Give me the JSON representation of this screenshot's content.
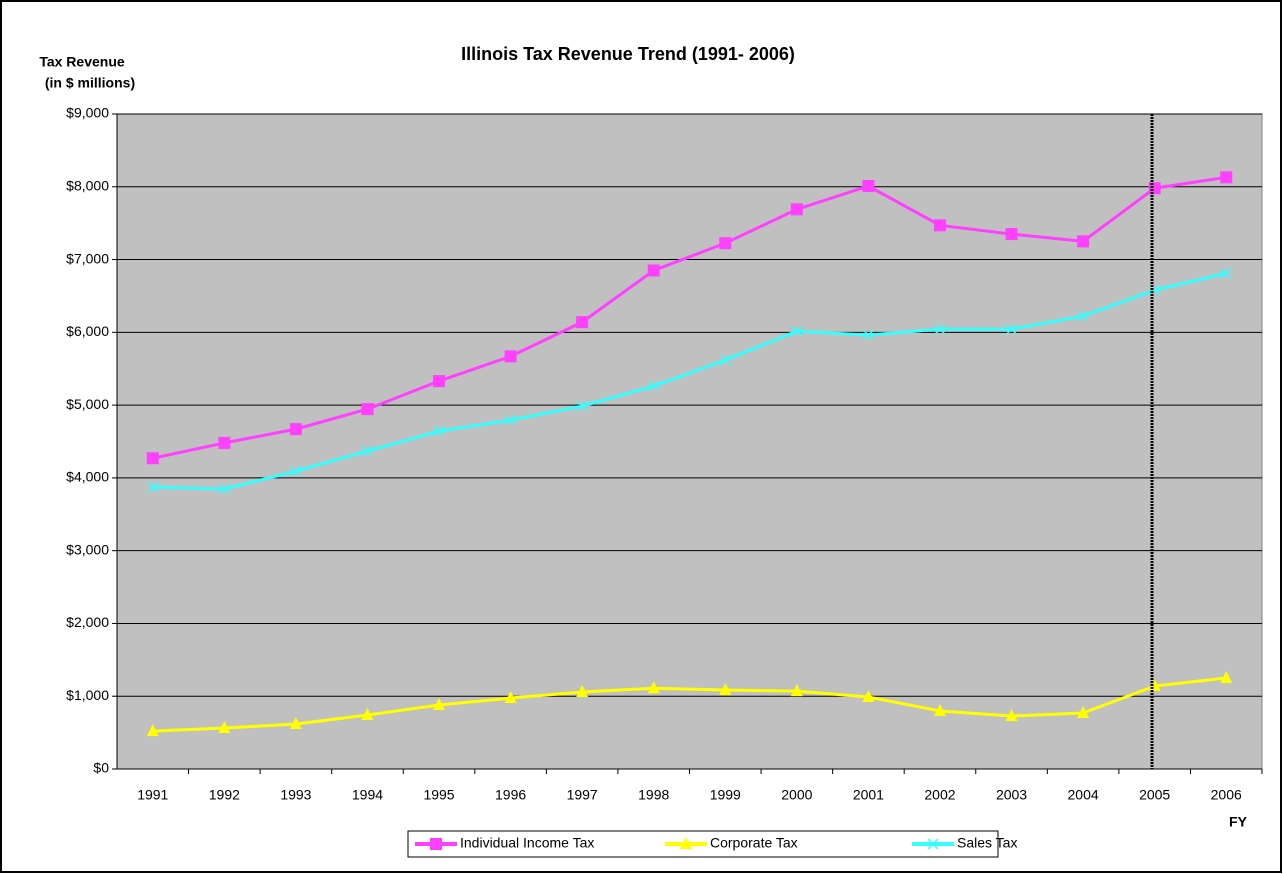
{
  "chart_data": {
    "type": "line",
    "title": "Illinois Tax Revenue Trend (1991- 2006)",
    "y_axis_label": [
      "Tax Revenue",
      "(in $ millions)"
    ],
    "x_axis_label": "FY",
    "categories": [
      "1991",
      "1992",
      "1993",
      "1994",
      "1995",
      "1996",
      "1997",
      "1998",
      "1999",
      "2000",
      "2001",
      "2002",
      "2003",
      "2004",
      "2005",
      "2006"
    ],
    "series": [
      {
        "name": "Individual Income Tax",
        "color": "#ff40ff",
        "marker": "square",
        "values": [
          4270,
          4480,
          4670,
          4945,
          5330,
          5670,
          6140,
          6850,
          7225,
          7690,
          8010,
          7470,
          7350,
          7250,
          7980,
          8130
        ]
      },
      {
        "name": "Corporate Tax",
        "color": "#ffff00",
        "marker": "triangle",
        "values": [
          520,
          563,
          618,
          742,
          880,
          975,
          1058,
          1110,
          1085,
          1070,
          990,
          797,
          728,
          769,
          1140,
          1250
        ]
      },
      {
        "name": "Sales Tax",
        "color": "#33ffff",
        "marker": "x",
        "values": [
          3874,
          3846,
          4093,
          4368,
          4643,
          4794,
          4986,
          5261,
          5618,
          6016,
          5962,
          6044,
          6044,
          6223,
          6580,
          6813
        ]
      }
    ],
    "ylim": [
      0,
      9000
    ],
    "yticks": [
      {
        "value": 0,
        "label": "$0"
      },
      {
        "value": 1000,
        "label": "$1,000"
      },
      {
        "value": 2000,
        "label": "$2,000"
      },
      {
        "value": 3000,
        "label": "$3,000"
      },
      {
        "value": 4000,
        "label": "$4,000"
      },
      {
        "value": 5000,
        "label": "$5,000"
      },
      {
        "value": 6000,
        "label": "$6,000"
      },
      {
        "value": 7000,
        "label": "$7,000"
      },
      {
        "value": 8000,
        "label": "$8,000"
      },
      {
        "value": 9000,
        "label": "$9,000"
      }
    ],
    "grid": true,
    "plot_background": "#c0c0c0",
    "legend": "bottom"
  }
}
